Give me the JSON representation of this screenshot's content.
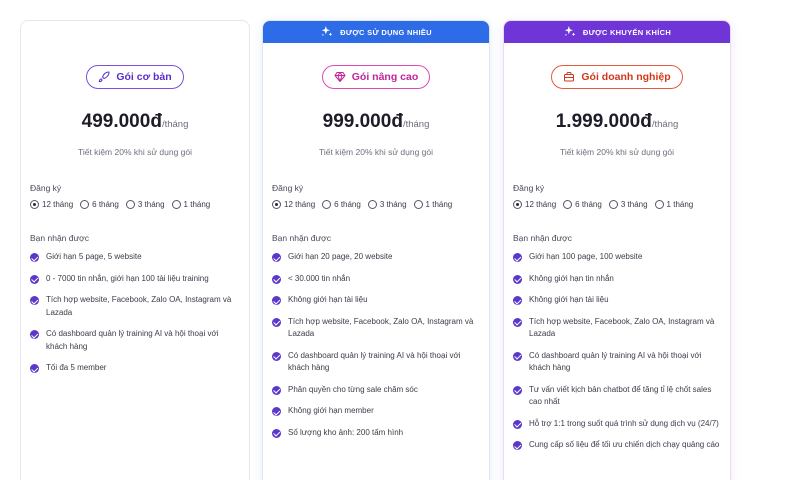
{
  "plans": [
    {
      "ribbon": "",
      "name": "Gói cơ bản",
      "icon": "rocket-icon",
      "price": "499.000đ",
      "unit": "/tháng",
      "save": "Tiết kiệm 20% khi sử dụng gói",
      "subscribe_label": "Đăng ký",
      "periods": [
        "12 tháng",
        "6 tháng",
        "3 tháng",
        "1 tháng"
      ],
      "selected_period": "12 tháng",
      "features_label": "Bạn nhận được",
      "features": [
        "Giới hạn 5 page, 5 website",
        "0 - 7000 tin nhắn, giới hạn 100 tài liệu training",
        "Tích hợp website, Facebook, Zalo OA, Instagram và Lazada",
        "Có dashboard quản lý training AI và hội thoại với khách hàng",
        "Tối đa 5 member"
      ]
    },
    {
      "ribbon": "ĐƯỢC SỬ DỤNG NHIỀU",
      "name": "Gói nâng cao",
      "icon": "diamond-icon",
      "price": "999.000đ",
      "unit": "/tháng",
      "save": "Tiết kiệm 20% khi sử dụng gói",
      "subscribe_label": "Đăng ký",
      "periods": [
        "12 tháng",
        "6 tháng",
        "3 tháng",
        "1 tháng"
      ],
      "selected_period": "12 tháng",
      "features_label": "Bạn nhận được",
      "features": [
        "Giới hạn 20 page, 20 website",
        "< 30.000 tin nhắn",
        "Không giới hạn tài liệu",
        "Tích hợp website, Facebook, Zalo OA, Instagram và Lazada",
        "Có dashboard quản lý training AI và hội thoại với khách hàng",
        "Phân quyền cho từng sale chăm sóc",
        "Không giới hạn member",
        "Số lượng kho ảnh: 200 tấm hình"
      ]
    },
    {
      "ribbon": "ĐƯỢC KHUYẾN KHÍCH",
      "name": "Gói doanh nghiệp",
      "icon": "briefcase-icon",
      "price": "1.999.000đ",
      "unit": "/tháng",
      "save": "Tiết kiệm 20% khi sử dụng gói",
      "subscribe_label": "Đăng ký",
      "periods": [
        "12 tháng",
        "6 tháng",
        "3 tháng",
        "1 tháng"
      ],
      "selected_period": "12 tháng",
      "features_label": "Bạn nhận được",
      "features": [
        "Giới hạn 100 page, 100 website",
        "Không giới hạn tin nhắn",
        "Không giới hạn tài liệu",
        "Tích hợp website, Facebook, Zalo OA, Instagram và Lazada",
        "Có dashboard quản lý training AI và hội thoại với khách hàng",
        "Tư vấn viết kịch bản chatbot để tăng tỉ lệ chốt sales cao nhất",
        "Hỗ trợ 1:1 trong suốt quá trình sử dụng dịch vụ (24/7)",
        "Cung cấp số liệu để tối ưu chiến dịch chạy quảng cáo"
      ]
    }
  ],
  "colors": {
    "ribbon_blue": "#2e6be6",
    "ribbon_purple": "#6f35d6",
    "check": "#5b38c9"
  }
}
